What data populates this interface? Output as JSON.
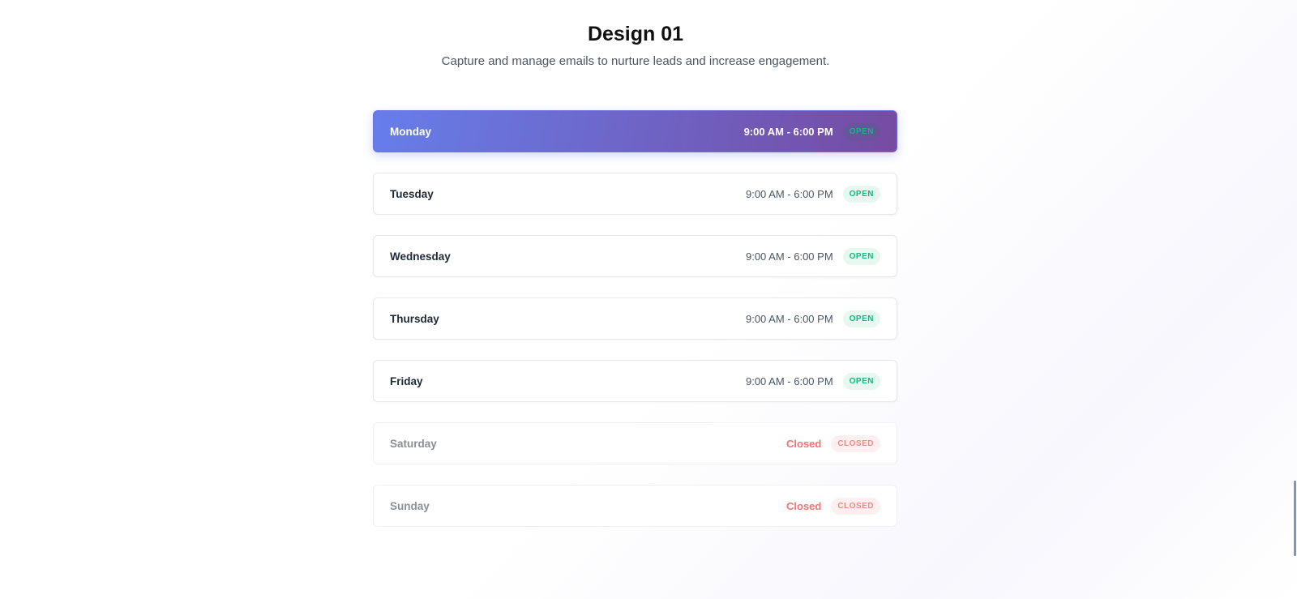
{
  "header": {
    "title": "Design 01",
    "subtitle": "Capture and manage emails to nurture leads and increase engagement."
  },
  "schedule": [
    {
      "day": "Monday",
      "hours": "9:00 AM - 6:00 PM",
      "status": "OPEN",
      "state": "active"
    },
    {
      "day": "Tuesday",
      "hours": "9:00 AM - 6:00 PM",
      "status": "OPEN",
      "state": "open"
    },
    {
      "day": "Wednesday",
      "hours": "9:00 AM - 6:00 PM",
      "status": "OPEN",
      "state": "open"
    },
    {
      "day": "Thursday",
      "hours": "9:00 AM - 6:00 PM",
      "status": "OPEN",
      "state": "open"
    },
    {
      "day": "Friday",
      "hours": "9:00 AM - 6:00 PM",
      "status": "OPEN",
      "state": "open"
    },
    {
      "day": "Saturday",
      "hours": "Closed",
      "status": "CLOSED",
      "state": "closed"
    },
    {
      "day": "Sunday",
      "hours": "Closed",
      "status": "CLOSED",
      "state": "closed"
    }
  ],
  "colors": {
    "accent_start": "#667eea",
    "accent_end": "#764ba2",
    "open": "#10b981",
    "closed": "#f87171"
  }
}
